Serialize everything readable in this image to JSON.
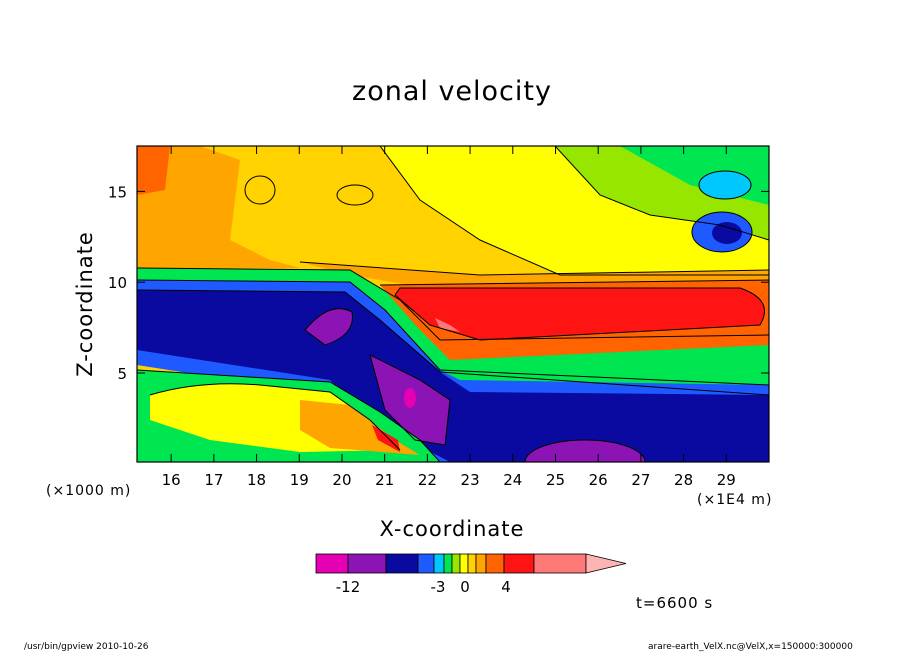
{
  "chart_data": {
    "type": "heatmap",
    "title": "zonal velocity",
    "xlabel": "X-coordinate",
    "ylabel": "Z-coordinate",
    "x_unit": "(×1E4 m)",
    "y_unit": "(×1000 m)",
    "x_ticks": [
      "16",
      "17",
      "18",
      "19",
      "20",
      "21",
      "22",
      "23",
      "24",
      "25",
      "26",
      "27",
      "28",
      "29"
    ],
    "y_ticks": [
      "5",
      "10",
      "15"
    ],
    "xlim": [
      15.2,
      30.0
    ],
    "ylim": [
      0.1,
      17.5
    ],
    "colorbar": {
      "labels": [
        "-12",
        "-3",
        "0",
        "4"
      ],
      "colors": [
        "#e600b4",
        "#8c14b4",
        "#0a0aa0",
        "#1e5aff",
        "#00c8ff",
        "#00e650",
        "#96e600",
        "#ffff00",
        "#ffd200",
        "#ffa500",
        "#ff6400",
        "#ff1414",
        "#ff7878",
        "#ffb4b4"
      ]
    },
    "regions": [
      {
        "name": "upper-warm",
        "color": "#ffd200"
      },
      {
        "name": "jet-core",
        "color": "#ff1414"
      },
      {
        "name": "lower-blue",
        "color": "#0a0aa0"
      },
      {
        "name": "surface-low",
        "color": "#8c14b4"
      }
    ]
  },
  "time_label": "t=6600 s",
  "footer": {
    "left": "/usr/bin/gpview   2010-10-26",
    "right": "arare-earth_VelX.nc@VelX,x=150000:300000"
  }
}
